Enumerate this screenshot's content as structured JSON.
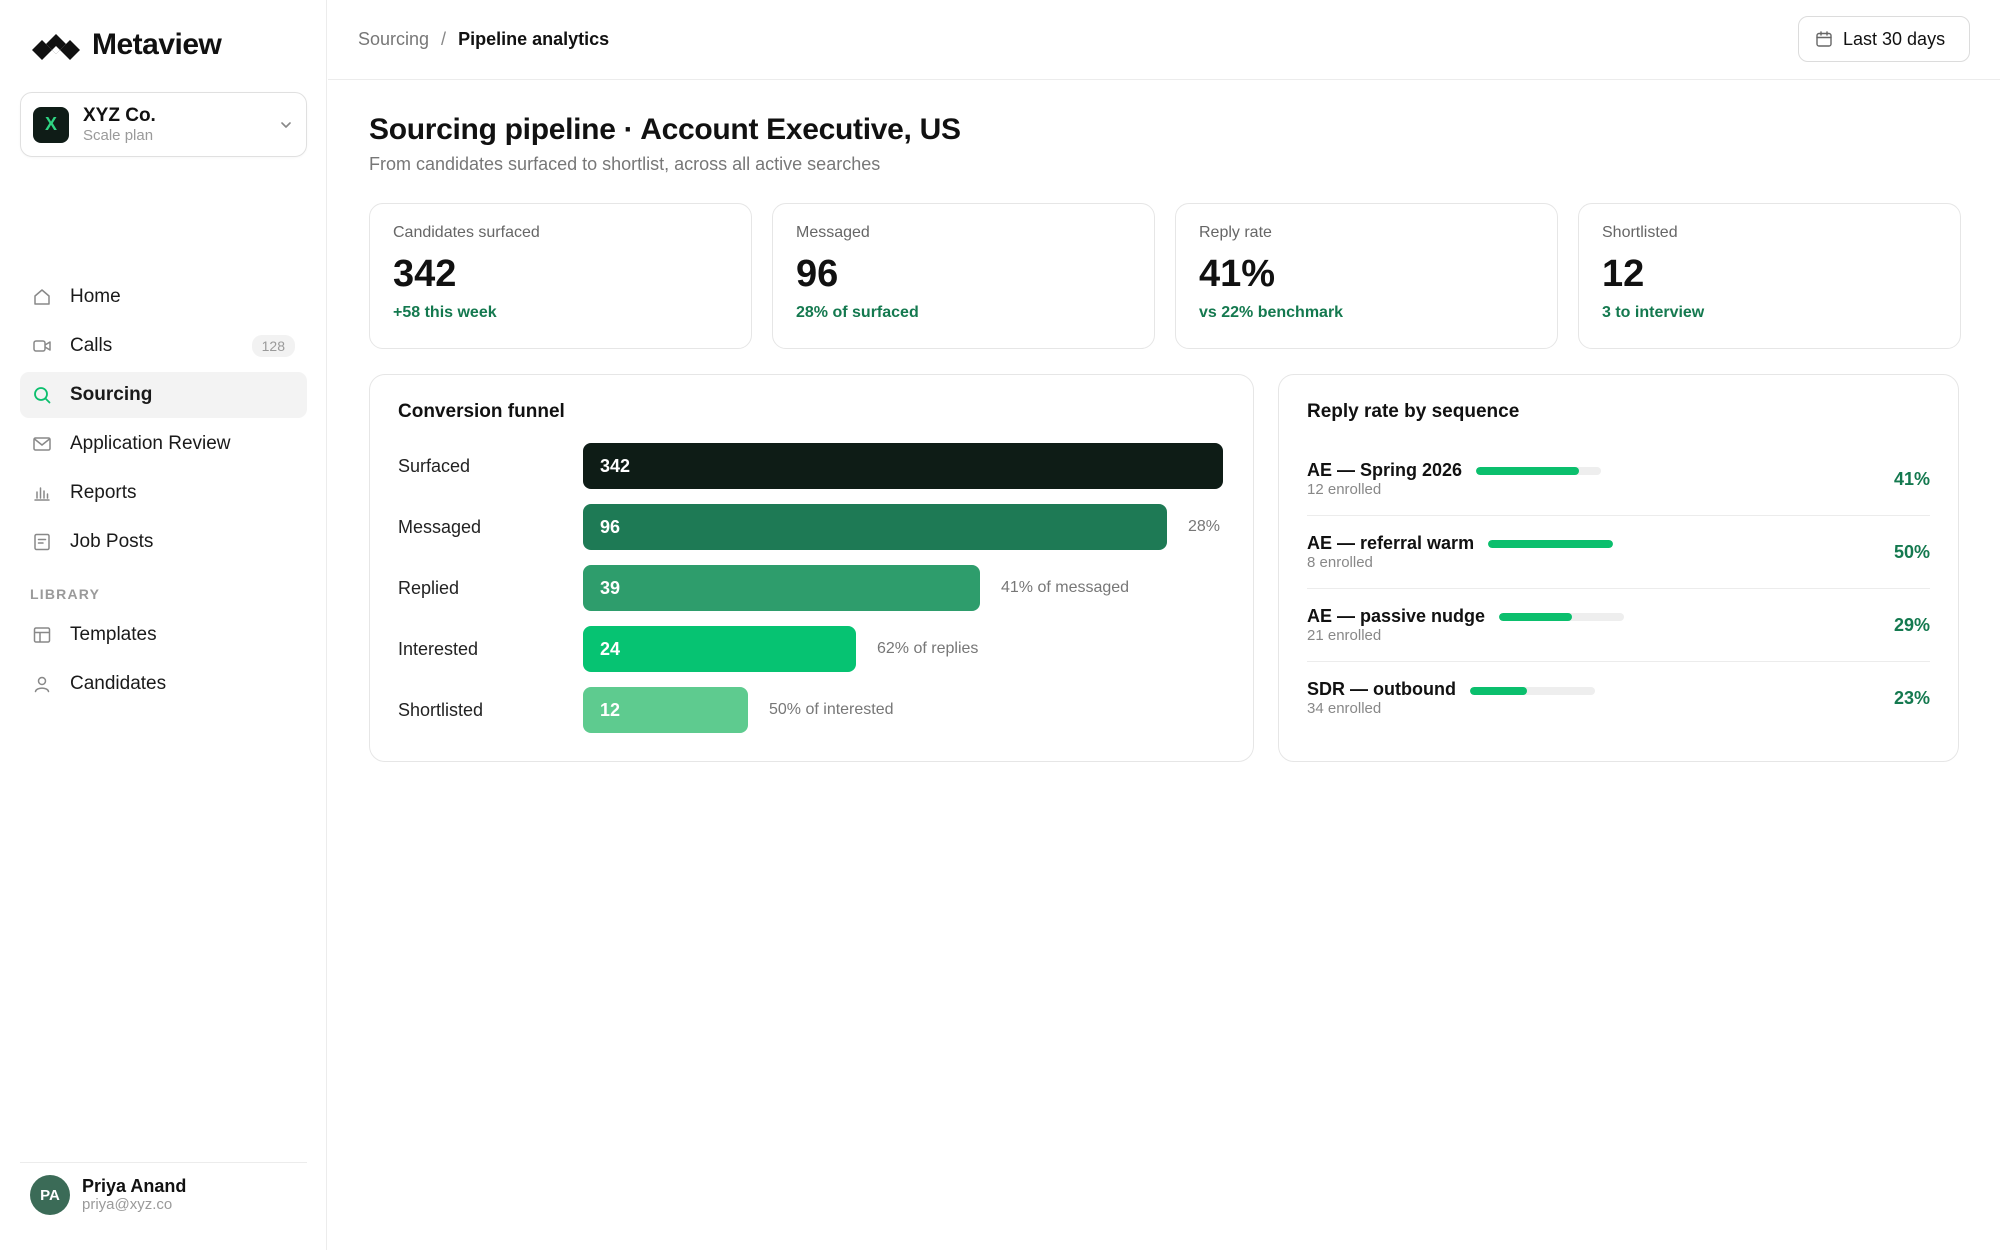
{
  "app": {
    "name": "Metaview"
  },
  "workspace": {
    "name": "XYZ Co.",
    "plan": "Scale plan",
    "initial": "X"
  },
  "nav": {
    "items": [
      {
        "label": "Home",
        "icon": "home-icon"
      },
      {
        "label": "Calls",
        "icon": "video-icon",
        "badge": "128"
      },
      {
        "label": "Sourcing",
        "icon": "search-icon",
        "active": true
      },
      {
        "label": "Application Review",
        "icon": "mail-icon"
      },
      {
        "label": "Reports",
        "icon": "bar-chart-icon"
      },
      {
        "label": "Job Posts",
        "icon": "document-icon"
      }
    ],
    "section_label": "LIBRARY",
    "library": [
      {
        "label": "Templates",
        "icon": "template-icon"
      },
      {
        "label": "Candidates",
        "icon": "person-icon"
      }
    ]
  },
  "user": {
    "initials": "PA",
    "name": "Priya Anand",
    "email": "priya@xyz.co"
  },
  "breadcrumb": {
    "parent": "Sourcing",
    "separator": "/",
    "current": "Pipeline analytics"
  },
  "date_range": {
    "label": "Last 30 days"
  },
  "page": {
    "title": "Sourcing pipeline · Account Executive, US",
    "subtitle": "From candidates surfaced to shortlist, across all active searches"
  },
  "stats": [
    {
      "label": "Candidates surfaced",
      "value": "342",
      "delta": "+58 this week"
    },
    {
      "label": "Messaged",
      "value": "96",
      "delta": "28% of surfaced"
    },
    {
      "label": "Reply rate",
      "value": "41%",
      "delta": "vs 22% benchmark"
    },
    {
      "label": "Shortlisted",
      "value": "12",
      "delta": "3 to interview"
    }
  ],
  "funnel": {
    "title": "Conversion funnel",
    "rows": [
      {
        "label": "Surfaced",
        "value": 342,
        "display": "342",
        "note": "",
        "color": "#0e1c16"
      },
      {
        "label": "Messaged",
        "value": 96,
        "display": "96",
        "note": "28%",
        "color": "#1e7a55"
      },
      {
        "label": "Replied",
        "value": 39,
        "display": "39",
        "note": "41% of messaged",
        "color": "#2e9d6c"
      },
      {
        "label": "Interested",
        "value": 24,
        "display": "24",
        "note": "62% of replies",
        "color": "#06c372"
      },
      {
        "label": "Shortlisted",
        "value": 12,
        "display": "12",
        "note": "50% of interested",
        "color": "#5ecb8f"
      }
    ]
  },
  "reply_rate": {
    "title": "Reply rate by sequence",
    "rows": [
      {
        "name": "AE — Spring 2026",
        "enrolled": "12 enrolled",
        "pct": "41%",
        "value": 0.82
      },
      {
        "name": "AE — referral warm",
        "enrolled": "8 enrolled",
        "pct": "50%",
        "value": 1.0
      },
      {
        "name": "AE — passive nudge",
        "enrolled": "21 enrolled",
        "pct": "29%",
        "value": 0.58
      },
      {
        "name": "SDR — outbound",
        "enrolled": "34 enrolled",
        "pct": "23%",
        "value": 0.46
      }
    ]
  },
  "colors": {
    "accent": "#0bbf6d",
    "positive_text": "#14794f",
    "dark": "#0e1c16"
  }
}
